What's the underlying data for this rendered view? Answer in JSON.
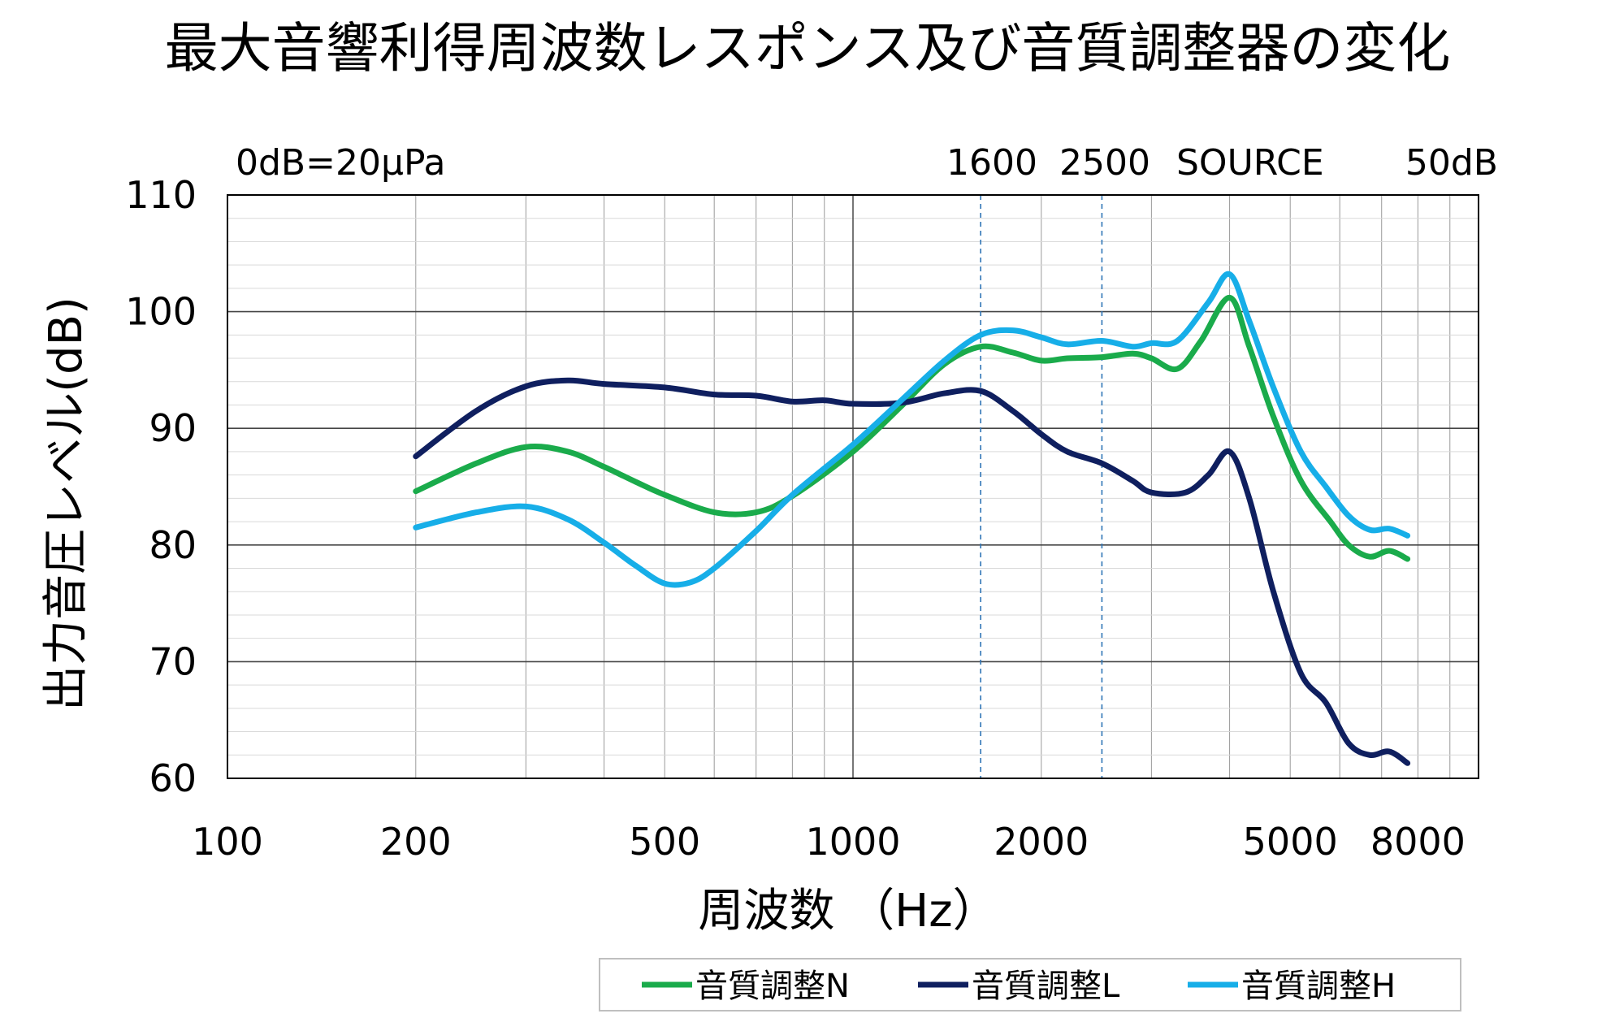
{
  "chart_data": {
    "type": "line",
    "title": "最大音響利得周波数レスポンス及び音質調整器の変化",
    "xlabel": "周波数 （Hz）",
    "ylabel": "出力音圧レベル(dB)",
    "x_scale": "log",
    "xlim": [
      100,
      10000
    ],
    "ylim": [
      60,
      110
    ],
    "x_ticks": [
      {
        "value": 100,
        "label": "100"
      },
      {
        "value": 200,
        "label": "200"
      },
      {
        "value": 500,
        "label": "500"
      },
      {
        "value": 1000,
        "label": "1000"
      },
      {
        "value": 2000,
        "label": "2000"
      },
      {
        "value": 5000,
        "label": "5000"
      },
      {
        "value": 8000,
        "label": "8000"
      }
    ],
    "y_ticks": [
      {
        "value": 60,
        "label": "60"
      },
      {
        "value": 70,
        "label": "70"
      },
      {
        "value": 80,
        "label": "80"
      },
      {
        "value": 90,
        "label": "90"
      },
      {
        "value": 100,
        "label": "100"
      },
      {
        "value": 110,
        "label": "110"
      }
    ],
    "grid": true,
    "annotations": {
      "reference": "0dB=20μPa",
      "marker_1600": "1600",
      "marker_2500": "2500",
      "source": "SOURCE",
      "source_level": "50dB"
    },
    "vlines": [
      1600,
      2500
    ],
    "legend_position": "bottom",
    "series": [
      {
        "name": "音質調整N",
        "color": "#1aab4b",
        "points": [
          [
            200,
            84.6
          ],
          [
            250,
            87
          ],
          [
            300,
            88.4
          ],
          [
            350,
            88
          ],
          [
            400,
            86.7
          ],
          [
            450,
            85.4
          ],
          [
            500,
            84.3
          ],
          [
            600,
            82.8
          ],
          [
            700,
            82.8
          ],
          [
            800,
            84.2
          ],
          [
            1000,
            88
          ],
          [
            1200,
            92
          ],
          [
            1400,
            95.5
          ],
          [
            1600,
            97
          ],
          [
            1800,
            96.5
          ],
          [
            2000,
            95.8
          ],
          [
            2200,
            96
          ],
          [
            2500,
            96.1
          ],
          [
            2800,
            96.4
          ],
          [
            3000,
            96
          ],
          [
            3300,
            95.1
          ],
          [
            3600,
            97.5
          ],
          [
            4000,
            101.2
          ],
          [
            4300,
            97
          ],
          [
            4700,
            91
          ],
          [
            5200,
            85.5
          ],
          [
            5800,
            82
          ],
          [
            6200,
            80
          ],
          [
            6700,
            79
          ],
          [
            7200,
            79.5
          ],
          [
            7700,
            78.8
          ]
        ]
      },
      {
        "name": "音質調整L",
        "color": "#0f1f5f",
        "points": [
          [
            200,
            87.6
          ],
          [
            250,
            91.5
          ],
          [
            300,
            93.6
          ],
          [
            350,
            94.1
          ],
          [
            400,
            93.8
          ],
          [
            500,
            93.5
          ],
          [
            600,
            92.9
          ],
          [
            700,
            92.8
          ],
          [
            800,
            92.3
          ],
          [
            900,
            92.4
          ],
          [
            1000,
            92.1
          ],
          [
            1200,
            92.2
          ],
          [
            1400,
            93
          ],
          [
            1600,
            93.2
          ],
          [
            1800,
            91.5
          ],
          [
            2000,
            89.5
          ],
          [
            2200,
            88
          ],
          [
            2500,
            87
          ],
          [
            2800,
            85.5
          ],
          [
            3000,
            84.5
          ],
          [
            3400,
            84.5
          ],
          [
            3700,
            86
          ],
          [
            4000,
            88
          ],
          [
            4300,
            84
          ],
          [
            4700,
            76
          ],
          [
            5200,
            69
          ],
          [
            5700,
            66.5
          ],
          [
            6200,
            63
          ],
          [
            6700,
            62
          ],
          [
            7200,
            62.3
          ],
          [
            7700,
            61.3
          ]
        ]
      },
      {
        "name": "音質調整H",
        "color": "#17aee8",
        "points": [
          [
            200,
            81.5
          ],
          [
            250,
            82.8
          ],
          [
            300,
            83.3
          ],
          [
            350,
            82.2
          ],
          [
            400,
            80.2
          ],
          [
            450,
            78.2
          ],
          [
            500,
            76.7
          ],
          [
            550,
            76.8
          ],
          [
            600,
            78
          ],
          [
            700,
            81.2
          ],
          [
            800,
            84.3
          ],
          [
            1000,
            88.6
          ],
          [
            1200,
            92.5
          ],
          [
            1400,
            95.8
          ],
          [
            1600,
            98
          ],
          [
            1800,
            98.4
          ],
          [
            2000,
            97.8
          ],
          [
            2200,
            97.2
          ],
          [
            2500,
            97.5
          ],
          [
            2800,
            97
          ],
          [
            3000,
            97.3
          ],
          [
            3300,
            97.5
          ],
          [
            3700,
            100.8
          ],
          [
            4000,
            103.2
          ],
          [
            4300,
            99.2
          ],
          [
            4700,
            93.5
          ],
          [
            5200,
            88
          ],
          [
            5700,
            85
          ],
          [
            6200,
            82.5
          ],
          [
            6700,
            81.3
          ],
          [
            7200,
            81.4
          ],
          [
            7700,
            80.8
          ]
        ]
      }
    ]
  }
}
